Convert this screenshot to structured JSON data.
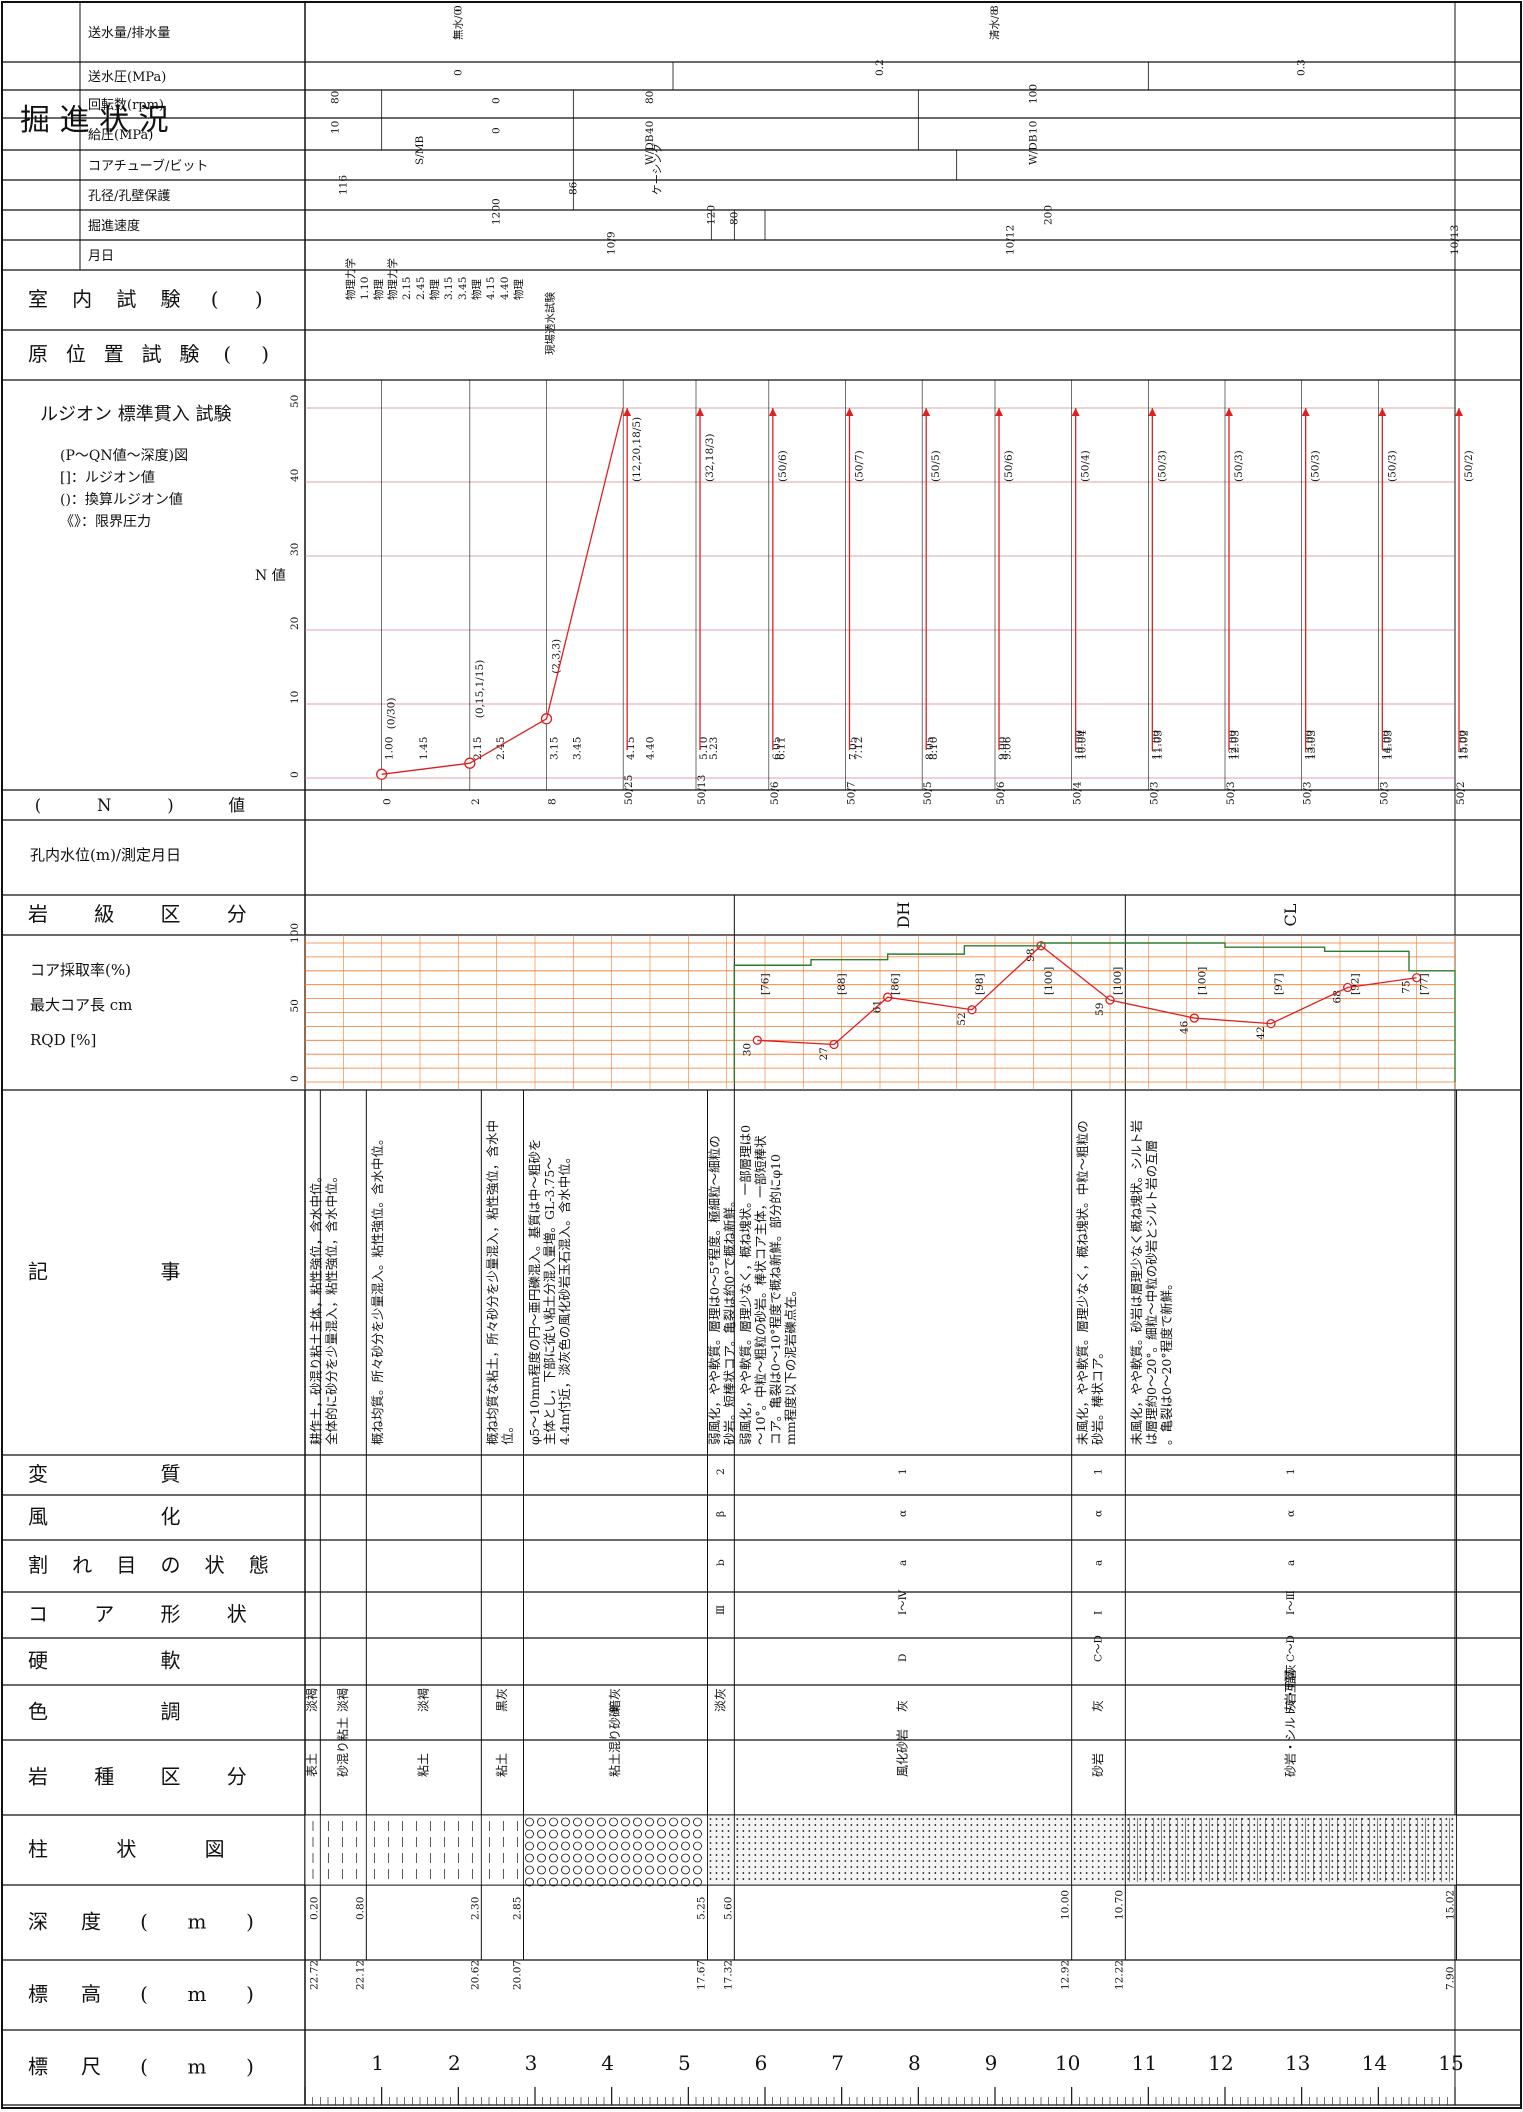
{
  "colors": {
    "line": "#111111",
    "red": "#e02020",
    "orange": "#f07a2a",
    "green": "#2e7d2e",
    "blue": "#2244cc"
  },
  "headers": {
    "scale": "標 尺 (m)",
    "elevation": "標 高 (m)",
    "depth": "深 度 (m)",
    "column": "柱 状 図",
    "rock_type": "岩 種 区 分",
    "color": "色 調",
    "hardness": "硬 軟",
    "core_shape": "コ ア 形 状",
    "fracture": "割 れ 目 の 状 態",
    "weathering": "風 化",
    "alteration": "変 質",
    "description": "記 事",
    "core_recovery": "コア採取率(%) 最大コア長 cm RQD[%]",
    "rock_class": "岩 級 区 分",
    "water_level": "孔内水位(m)/測定月日",
    "n_value": "(N)値",
    "test_chart": "ルジオン 標準貫入 試験",
    "test_legend": [
      "(P～QN値～深度)図",
      "[]：ルジオン値",
      "()：換算ルジオン値",
      "《》：限界圧力"
    ],
    "n_axis": "N 値",
    "insitu": "原位置試験( )",
    "lab": "室内試験( )",
    "progress": "掘 進 状 況",
    "date": "月日",
    "speed": "掘進速度(cm/時)",
    "hole": "孔径(mm)/孔壁保護",
    "bit": "コアチューブ/ビット",
    "press": "給圧(MPa)",
    "rpm": "回転数(rpm)",
    "pump": "送水圧(MPa)",
    "water": "送水量(l/分)/排水量(l/分)"
  },
  "scale_ticks": [
    "1",
    "2",
    "3",
    "4",
    "5",
    "6",
    "7",
    "8",
    "9",
    "10",
    "11",
    "12",
    "13",
    "14",
    "15"
  ],
  "n_ticks": [
    "0",
    "10",
    "20",
    "30",
    "40",
    "50"
  ],
  "rqd_ticks": [
    "0",
    "50",
    "100"
  ],
  "layers": [
    {
      "elev": "22.72",
      "depth": "0.20",
      "rock": "表土",
      "color": "淡褐",
      "hard": "",
      "shape": "",
      "crack": "",
      "weath": "",
      "alter": "",
      "desc": "耕作土，砂混り粘土主体，粘性強位，含水中位。"
    },
    {
      "elev": "22.12",
      "depth": "0.80",
      "rock": "砂混り粘土",
      "color": "淡褐",
      "hard": "",
      "shape": "",
      "crack": "",
      "weath": "",
      "alter": "",
      "desc": "全体的に砂分を少量混入，粘性強位，含水中位。"
    },
    {
      "elev": "20.62",
      "depth": "2.30",
      "rock": "粘土",
      "color": "淡褐",
      "hard": "",
      "shape": "",
      "crack": "",
      "weath": "",
      "alter": "",
      "desc": "概ね均質。所々砂分を少量混入。粘性強位。含水中位。"
    },
    {
      "elev": "20.07",
      "depth": "2.85",
      "rock": "粘土",
      "color": "黒灰",
      "hard": "",
      "shape": "",
      "crack": "",
      "weath": "",
      "alter": "",
      "desc": "概ね均質な粘土，所々砂分を少量混入，粘性強位，含水中位。"
    },
    {
      "elev": "17.67",
      "depth": "5.25",
      "rock": "粘土混り砂礫",
      "color": "暗灰",
      "hard": "",
      "shape": "",
      "crack": "",
      "weath": "",
      "alter": "",
      "desc": "φ5～10mm程度の円～亜円礫混入。基質は中～粗砂を主体とし，下部に従い粘土分混入量増。GL-3.75～4.4m付近，淡灰色の風化砂岩玉石混入。含水中位。"
    },
    {
      "elev": "17.32",
      "depth": "5.60",
      "rock": "",
      "color": "淡灰",
      "hard": "",
      "shape": "Ⅲ",
      "crack": "b",
      "weath": "β",
      "alter": "2",
      "desc": "弱風化，やや軟質。層理は0～5°程度。極細粒～細粒の砂岩。短棒状コア。亀裂は約0°で概ね新鮮。"
    },
    {
      "elev": "12.92",
      "depth": "10.00",
      "rock": "風化砂岩",
      "color": "灰",
      "hard": "D",
      "shape": "Ⅰ～Ⅳ",
      "crack": "a",
      "weath": "α",
      "alter": "1",
      "desc": "弱風化，やや軟質。層理少なく，概ね塊状。一部層理は0～10°。中粒～粗粒の砂岩。棒状コア主体，一部短棒状コア。亀裂は0～10°程度で概ね新鮮。部分的にφ10mm程度以下の泥岩礫点在。"
    },
    {
      "elev": "12.22",
      "depth": "10.70",
      "rock": "砂岩",
      "color": "灰",
      "hard": "C～D",
      "shape": "Ⅰ",
      "crack": "a",
      "weath": "α",
      "alter": "1",
      "desc": "未風化，やや軟質。層理少なく，概ね塊状。中粒～粗粒の砂岩。棒状コア。"
    },
    {
      "elev": "7.90",
      "depth": "15.02",
      "rock": "砂岩・シルト岩互層",
      "color": "灰・暗灰",
      "hard": "C～D",
      "shape": "Ⅰ～Ⅲ",
      "crack": "a",
      "weath": "α",
      "alter": "1",
      "desc": "未風化，やや軟質。砂岩は層理少なく概ね塊状。シルト岩は層理約0～20°。細粒～中粒の砂岩とシルト岩の互層。亀裂は0～20°程度で新鮮。"
    }
  ],
  "rock_class": [
    "DH",
    "CL"
  ],
  "rqd_values": [
    {
      "depth": 5.9,
      "rqd": 30,
      "core": "76"
    },
    {
      "depth": 6.9,
      "rqd": 27,
      "core": "88"
    },
    {
      "depth": 7.6,
      "rqd": 61,
      "core": "86"
    },
    {
      "depth": 8.7,
      "rqd": 52,
      "core": "98"
    },
    {
      "depth": 9.6,
      "rqd": 98,
      "core": "100"
    },
    {
      "depth": 10.5,
      "rqd": 59,
      "core": "100"
    },
    {
      "depth": 11.6,
      "rqd": 46,
      "core": "100"
    },
    {
      "depth": 12.6,
      "rqd": 42,
      "core": "97"
    },
    {
      "depth": 13.6,
      "rqd": 68,
      "core": "92"
    },
    {
      "depth": 14.5,
      "rqd": 75,
      "core": "77"
    }
  ],
  "spt": [
    {
      "from": "1.00",
      "to": "1.45",
      "n": "0",
      "blows": "0/30",
      "value": 0.5
    },
    {
      "from": "2.15",
      "to": "2.45",
      "n": "2",
      "blows": "0,15,1/15",
      "value": 2
    },
    {
      "from": "3.15",
      "to": "3.45",
      "n": "8",
      "blows": "2,3,3",
      "value": 8
    },
    {
      "from": "4.15",
      "to": "4.40",
      "n": "50/25",
      "blows": "12,20,18/5",
      "value": 50
    },
    {
      "from": "5.10",
      "to": "5.23",
      "n": "50/13",
      "blows": "32,18/3",
      "value": 50
    },
    {
      "from": "6.05",
      "to": "6.11",
      "n": "50/6",
      "blows": "50/6",
      "value": 50
    },
    {
      "from": "7.05",
      "to": "7.12",
      "n": "50/7",
      "blows": "50/7",
      "value": 50
    },
    {
      "from": "8.05",
      "to": "8.10",
      "n": "50/5",
      "blows": "50/5",
      "value": 50
    },
    {
      "from": "9.00",
      "to": "9.06",
      "n": "50/6",
      "blows": "50/6",
      "value": 50
    },
    {
      "from": "10.00",
      "to": "10.04",
      "n": "50/4",
      "blows": "50/4",
      "value": 50
    },
    {
      "from": "11.00",
      "to": "11.03",
      "n": "50/3",
      "blows": "50/3",
      "value": 50
    },
    {
      "from": "12.00",
      "to": "12.03",
      "n": "50/3",
      "blows": "50/3",
      "value": 50
    },
    {
      "from": "13.00",
      "to": "13.03",
      "n": "50/3",
      "blows": "50/3",
      "value": 50
    },
    {
      "from": "14.00",
      "to": "14.03",
      "n": "50/3",
      "blows": "50/3",
      "value": 50
    },
    {
      "from": "15.00",
      "to": "15.02",
      "n": "50/2",
      "blows": "50/2",
      "value": 50
    }
  ],
  "insitu_test": "現場透水試験",
  "lab_tests": [
    "物理力学",
    "1.10",
    "物理",
    "物理力学",
    "2.15",
    "2.45",
    "物理",
    "3.15",
    "3.45",
    "物理",
    "4.15",
    "4.40",
    "物理"
  ],
  "progress_rows": {
    "dates": [
      "10/9",
      "10/12",
      "10/13"
    ],
    "speed": [
      "1200",
      "120",
      "80",
      "200"
    ],
    "hole": [
      "116",
      "86",
      "ケーシング"
    ],
    "bit": [
      "S/MB",
      "W/DB",
      "W/DB"
    ],
    "press": [
      "10",
      "0",
      "40",
      "10"
    ],
    "rpm": [
      "80",
      "0",
      "80",
      "100"
    ],
    "pump": [
      "0",
      "0.2",
      "0.3"
    ],
    "water": [
      "無水/0",
      "清水/8"
    ],
    "discharge": [
      "0",
      "8"
    ]
  }
}
